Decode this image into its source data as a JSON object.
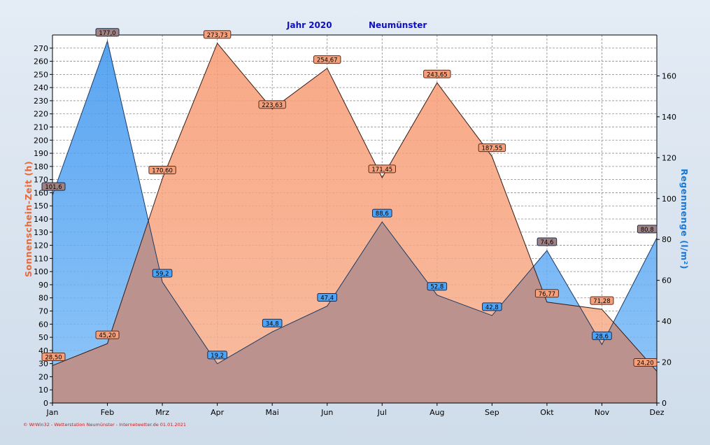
{
  "chart_data": {
    "type": "area",
    "title_year": "Jahr  2020",
    "title_location": "Neumünster",
    "ylabel_left": "Sonnenschein-Zeit  (h)",
    "ylabel_right": "Regenmenge  (l/m²)",
    "categories": [
      "Jan",
      "Feb",
      "Mrz",
      "Apr",
      "Mai",
      "Jun",
      "Jul",
      "Aug",
      "Sep",
      "Okt",
      "Nov",
      "Dez"
    ],
    "ylim_left": [
      0,
      280
    ],
    "yticks_left": [
      0,
      10,
      20,
      30,
      40,
      50,
      60,
      70,
      80,
      90,
      100,
      110,
      120,
      130,
      140,
      150,
      160,
      170,
      180,
      190,
      200,
      210,
      220,
      230,
      240,
      250,
      260,
      270
    ],
    "ylim_right": [
      0,
      180
    ],
    "yticks_right": [
      0,
      20,
      40,
      60,
      80,
      100,
      120,
      140,
      160
    ],
    "grid": true,
    "series": [
      {
        "axis": "right",
        "color": "#4da3f5",
        "values": [
          101.6,
          177.0,
          59.2,
          19.2,
          34.8,
          47.4,
          88.6,
          52.8,
          42.8,
          74.6,
          28.6,
          80.8
        ],
        "labels": [
          "101,6",
          "177,0",
          "59,2",
          "19,2",
          "34,8",
          "47,4",
          "88,6",
          "52,8",
          "42,8",
          "74,6",
          "28,6",
          "80,8"
        ]
      },
      {
        "axis": "left",
        "color": "#f9a27a",
        "values": [
          28.5,
          45.2,
          170.6,
          273.73,
          223.63,
          254.67,
          171.45,
          243.65,
          187.55,
          76.77,
          71.28,
          24.2
        ],
        "labels": [
          "28,50",
          "45,20",
          "170,60",
          "273,73",
          "223,63",
          "254,67",
          "171,45",
          "243,65",
          "187,55",
          "76,77",
          "71,28",
          "24,20"
        ]
      }
    ]
  },
  "footer": "© WrWin32 - Wetterstation Neumünster - Internetwetter.de  01.01.2021"
}
